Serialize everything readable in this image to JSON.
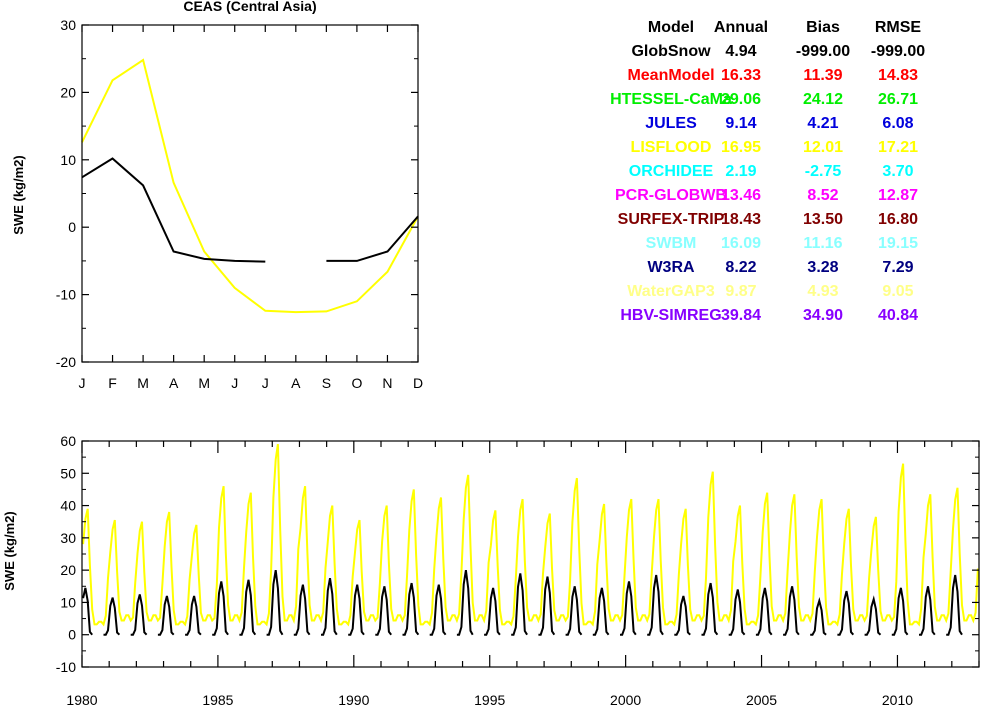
{
  "chart_data": [
    {
      "type": "line",
      "title": "CEAS (Central Asia)",
      "ylabel": "SWE (kg/m2)",
      "xlabel": "",
      "categories": [
        "J",
        "F",
        "M",
        "A",
        "M",
        "J",
        "J",
        "A",
        "S",
        "O",
        "N",
        "D"
      ],
      "ylim": [
        -20,
        30
      ],
      "yticks": [
        -20,
        -10,
        0,
        10,
        20,
        30
      ],
      "grid": false,
      "series": [
        {
          "color": "#ffff00",
          "values": [
            12.6,
            21.8,
            24.8,
            6.6,
            -3.6,
            -9.0,
            -12.4,
            -12.6,
            -12.5,
            -11.0,
            -6.6,
            1.6
          ]
        },
        {
          "color": "#000000",
          "values": [
            7.4,
            10.2,
            6.2,
            -3.6,
            -4.7,
            -5.0,
            -5.1,
            null,
            -5.0,
            -5.0,
            -3.6,
            1.6
          ]
        }
      ]
    },
    {
      "type": "line",
      "title": "",
      "ylabel": "SWE (kg/m2)",
      "xlabel": "",
      "xlim": [
        1980,
        2013
      ],
      "xticks": [
        1980,
        1985,
        1990,
        1995,
        2000,
        2005,
        2010
      ],
      "ylim": [
        -10,
        60
      ],
      "yticks": [
        -10,
        0,
        10,
        20,
        30,
        40,
        50,
        60
      ],
      "grid": false,
      "series": [
        {
          "color": "#ffff00",
          "annual_peaks": [
            39,
            35.5,
            35,
            38,
            34,
            46,
            44,
            59,
            46,
            40,
            35.5,
            40,
            45,
            42.5,
            49.5,
            38.5,
            42,
            37.5,
            48.5,
            40.5,
            42,
            42,
            39,
            50.5,
            40,
            44,
            43.5,
            42,
            39,
            36.5,
            53,
            43.5,
            45.5
          ]
        },
        {
          "color": "#000000",
          "annual_peaks": [
            14.5,
            11.5,
            12.5,
            12,
            12,
            16.5,
            17,
            20,
            15.5,
            17.5,
            15.5,
            15,
            16,
            15.5,
            20,
            14.5,
            19,
            18,
            15,
            14.5,
            16.5,
            18.5,
            12,
            16,
            14,
            14.5,
            15,
            10.5,
            13.5,
            11,
            14.5,
            15,
            18.5
          ]
        }
      ]
    }
  ],
  "table": {
    "headers": [
      "Model",
      "Annual",
      "Bias",
      "RMSE"
    ],
    "rows": [
      {
        "model": "GlobSnow",
        "annual": "4.94",
        "bias": "-999.00",
        "rmse": "-999.00",
        "color": "#000000"
      },
      {
        "model": "MeanModel",
        "annual": "16.33",
        "bias": "11.39",
        "rmse": "14.83",
        "color": "#ff0000"
      },
      {
        "model": "HTESSEL-CaMa",
        "annual": "29.06",
        "bias": "24.12",
        "rmse": "26.71",
        "color": "#00ee00"
      },
      {
        "model": "JULES",
        "annual": "9.14",
        "bias": "4.21",
        "rmse": "6.08",
        "color": "#0000dd"
      },
      {
        "model": "LISFLOOD",
        "annual": "16.95",
        "bias": "12.01",
        "rmse": "17.21",
        "color": "#ffff00"
      },
      {
        "model": "ORCHIDEE",
        "annual": "2.19",
        "bias": "-2.75",
        "rmse": "3.70",
        "color": "#00ffff"
      },
      {
        "model": "PCR-GLOBWB",
        "annual": "13.46",
        "bias": "8.52",
        "rmse": "12.87",
        "color": "#ff00ff"
      },
      {
        "model": "SURFEX-TRIP",
        "annual": "18.43",
        "bias": "13.50",
        "rmse": "16.80",
        "color": "#800000"
      },
      {
        "model": "SWBM",
        "annual": "16.09",
        "bias": "11.16",
        "rmse": "19.15",
        "color": "#88ffff"
      },
      {
        "model": "W3RA",
        "annual": "8.22",
        "bias": "3.28",
        "rmse": "7.29",
        "color": "#000080"
      },
      {
        "model": "WaterGAP3",
        "annual": "9.87",
        "bias": "4.93",
        "rmse": "9.05",
        "color": "#ffff88"
      },
      {
        "model": "HBV-SIMREG",
        "annual": "39.84",
        "bias": "34.90",
        "rmse": "40.84",
        "color": "#8800ff"
      }
    ]
  }
}
